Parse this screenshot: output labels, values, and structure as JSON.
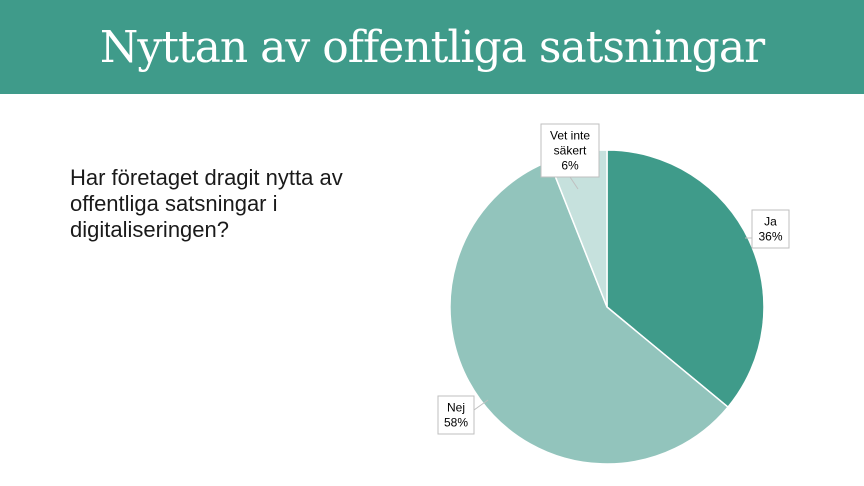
{
  "header": {
    "title": "Nyttan av offentliga satsningar"
  },
  "question": {
    "text": "Har företaget dragit nytta av offentliga satsningar i digitaliseringen?"
  },
  "colors": {
    "banner": "#3f9b8a"
  },
  "chart_data": {
    "type": "pie",
    "title": "",
    "slices": [
      {
        "label": [
          "Ja",
          "36%"
        ],
        "value": 36,
        "color": "#3f9b8a"
      },
      {
        "label": [
          "Nej",
          "58%"
        ],
        "value": 58,
        "color": "#92c4bc"
      },
      {
        "label": [
          "Vet inte",
          "säkert",
          "6%"
        ],
        "value": 6,
        "color": "#c6e1dd"
      }
    ]
  }
}
